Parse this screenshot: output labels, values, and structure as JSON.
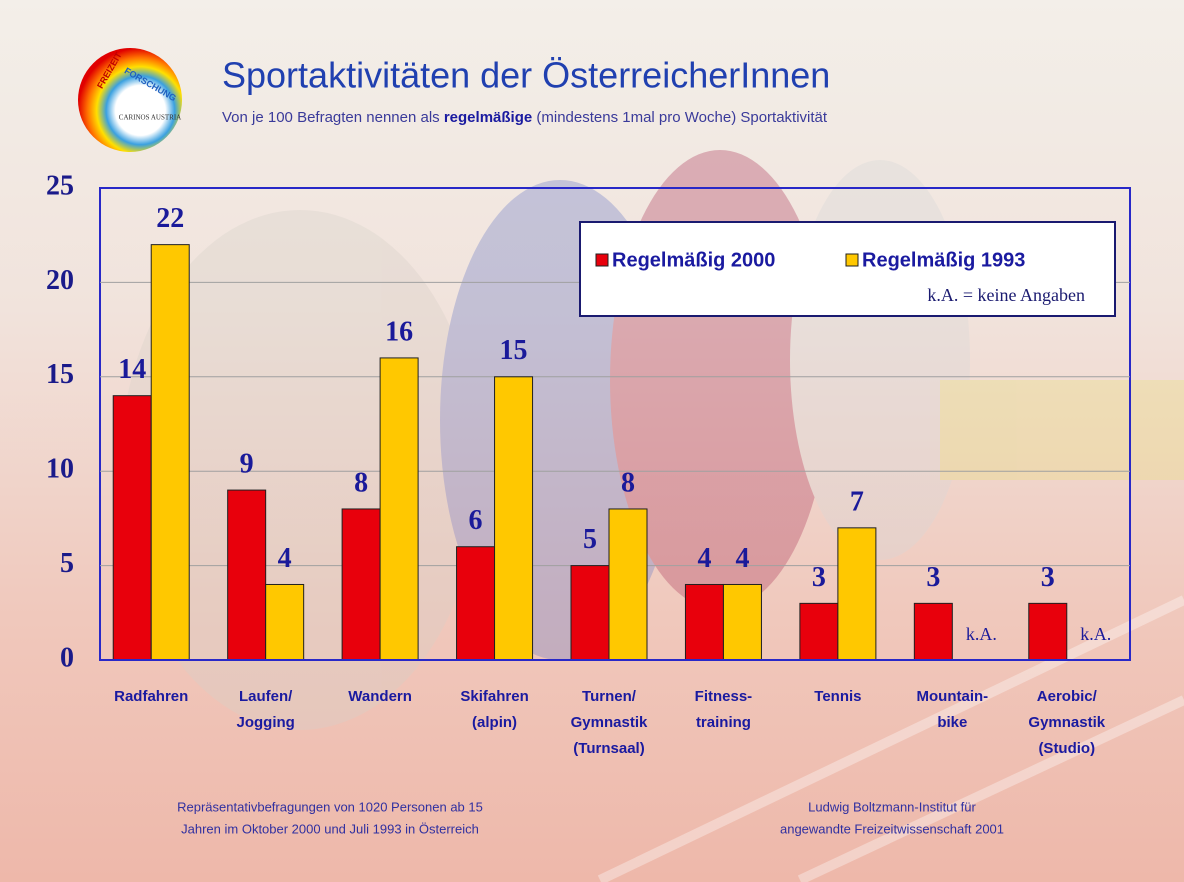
{
  "logo": {
    "lines": [
      "FREIZEIT",
      "FORSCHUNG",
      "CARINOS AUSTRIA"
    ]
  },
  "chart_data": {
    "type": "bar",
    "title": "Sportaktivitäten der ÖsterreicherInnen",
    "subtitle": [
      "Von je 100 Befragten nennen als ",
      "regelmäßige",
      " (mindestens 1mal pro Woche) Sportaktivität"
    ],
    "categories": [
      [
        "Radfahren"
      ],
      [
        "Laufen/",
        "Jogging"
      ],
      [
        "Wandern"
      ],
      [
        "Skifahren",
        "(alpin)"
      ],
      [
        "Turnen/",
        "Gymnastik",
        "(Turnsaal)"
      ],
      [
        "Fitness-",
        "training"
      ],
      [
        "Tennis"
      ],
      [
        "Mountain-",
        "bike"
      ],
      [
        "Aerobic/",
        "Gymnastik",
        "(Studio)"
      ]
    ],
    "series": [
      {
        "name": "Regelmäßig 2000",
        "color": "#e8000c",
        "values": [
          14,
          9,
          8,
          6,
          5,
          4,
          3,
          3,
          3
        ]
      },
      {
        "name": "Regelmäßig 1993",
        "color": "#ffc800",
        "values": [
          22,
          4,
          16,
          15,
          8,
          4,
          7,
          null,
          null
        ],
        "value_labels": [
          "22",
          "4",
          "16",
          "15",
          "8",
          "4",
          "7",
          "k.A.",
          "k.A."
        ]
      }
    ],
    "legend_note": "k.A. = keine Angaben",
    "ylim": [
      0,
      25
    ],
    "yticks": [
      0,
      5,
      10,
      15,
      20,
      25
    ],
    "grid": true,
    "footnotes": [
      [
        "Repräsentativbefragungen von 1020 Personen ab 15",
        "Jahren im Oktober 2000 und Juli 1993 in Österreich"
      ],
      [
        "Ludwig Boltzmann-Institut für",
        "angewandte Freizeitwissenschaft 2001"
      ]
    ]
  }
}
